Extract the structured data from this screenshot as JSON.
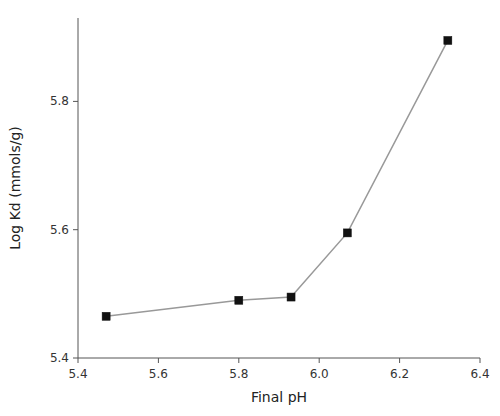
{
  "chart_data": {
    "type": "line",
    "xlabel": "Final pH",
    "ylabel": "Log Kd (mmols/g)",
    "x": [
      5.47,
      5.8,
      5.93,
      6.07,
      6.32
    ],
    "series": [
      {
        "color": "#999999",
        "marker": "square",
        "colors": [
          "#111111",
          "#111111",
          "#111111",
          "#111111",
          "#111111"
        ],
        "values": [
          5.465,
          5.49,
          5.495,
          5.595,
          5.895
        ]
      }
    ],
    "xlim": [
      5.4,
      6.4
    ],
    "ylim": [
      5.4,
      5.93
    ],
    "xticks": [
      5.4,
      5.6,
      5.8,
      {
        "value": 6.0,
        "label": "6.0"
      },
      6.2,
      6.4
    ],
    "yticks": [
      5.4,
      5.6,
      5.8
    ],
    "grid": false
  }
}
